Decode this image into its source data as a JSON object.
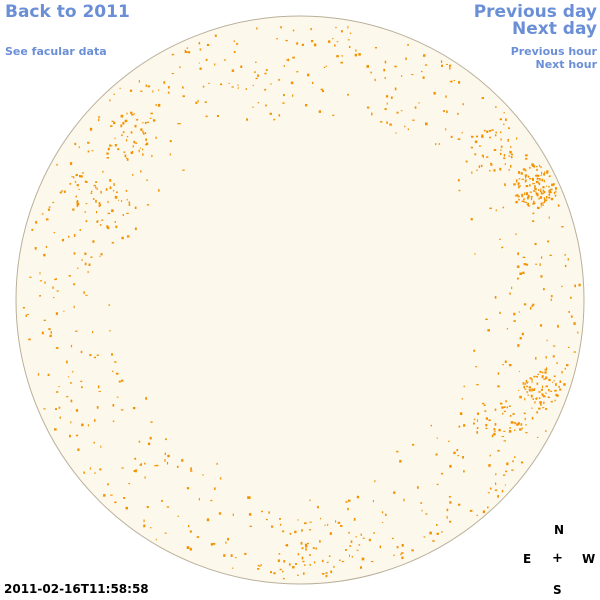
{
  "nav": {
    "back_label": "Back to 2011",
    "facular_label": "See facular data",
    "prev_day_label": "Previous day",
    "next_day_label": "Next day",
    "prev_hour_label": "Previous hour",
    "next_hour_label": "Next hour"
  },
  "timestamp": "2011-02-16T11:58:58",
  "compass": {
    "north": "N",
    "east": "E",
    "center": "+",
    "west": "W",
    "south": "S"
  },
  "colors": {
    "link": "#6b8fd6",
    "disk_fill": "#fdf8ec",
    "disk_edge": "#b9b09a",
    "facula": "#f29200"
  },
  "disk": {
    "feature_count_hint": "many"
  }
}
